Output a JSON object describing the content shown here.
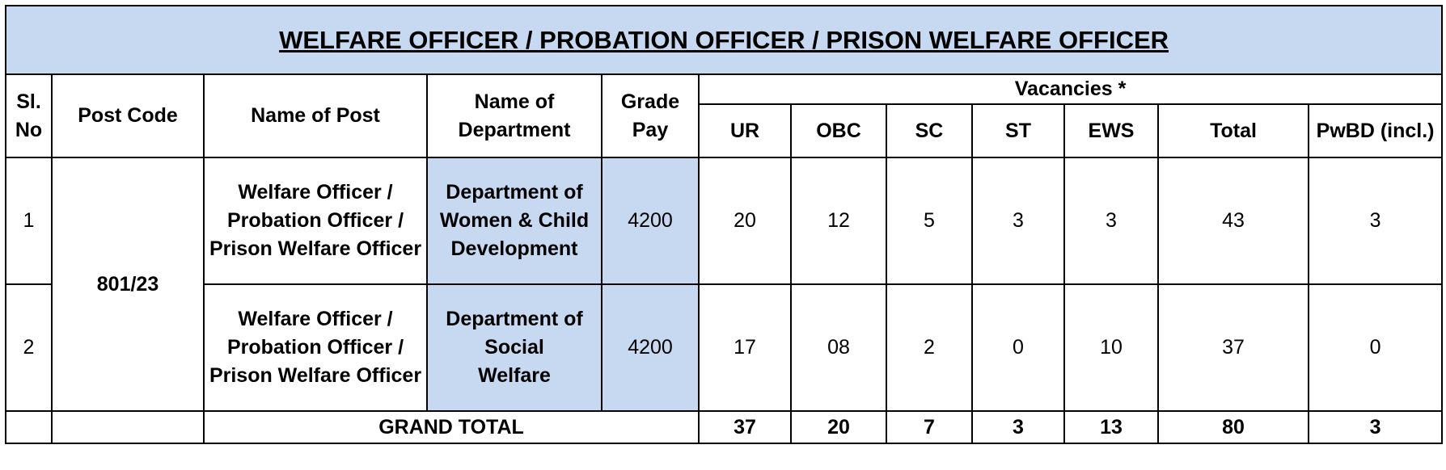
{
  "title": "WELFARE OFFICER / PROBATION OFFICER / PRISON WELFARE OFFICER",
  "header": {
    "sl_no": "Sl. No",
    "post_code": "Post Code",
    "name_of_post": "Name of Post",
    "department": "Name of Department",
    "grade_pay": "Grade Pay",
    "vacancies": "Vacancies *",
    "columns": [
      "UR",
      "OBC",
      "SC",
      "ST",
      "EWS",
      "Total",
      "PwBD (incl.)"
    ]
  },
  "post_code": "801/23",
  "rows": [
    {
      "sl_no": "1",
      "name_of_post": "Welfare Officer / Probation Officer / Prison Welfare Officer",
      "department": "Department of Women & Child Development",
      "grade_pay": "4200",
      "vacancies": [
        "20",
        "12",
        "5",
        "3",
        "3",
        "43",
        "3"
      ]
    },
    {
      "sl_no": "2",
      "name_of_post": "Welfare Officer / Probation Officer / Prison Welfare Officer",
      "department": "Department of Social Welfare",
      "grade_pay": "4200",
      "vacancies": [
        "17",
        "08",
        "2",
        "0",
        "10",
        "37",
        "0"
      ]
    }
  ],
  "grand_total": {
    "label": "GRAND TOTAL",
    "values": [
      "37",
      "20",
      "7",
      "3",
      "13",
      "80",
      "3"
    ]
  }
}
